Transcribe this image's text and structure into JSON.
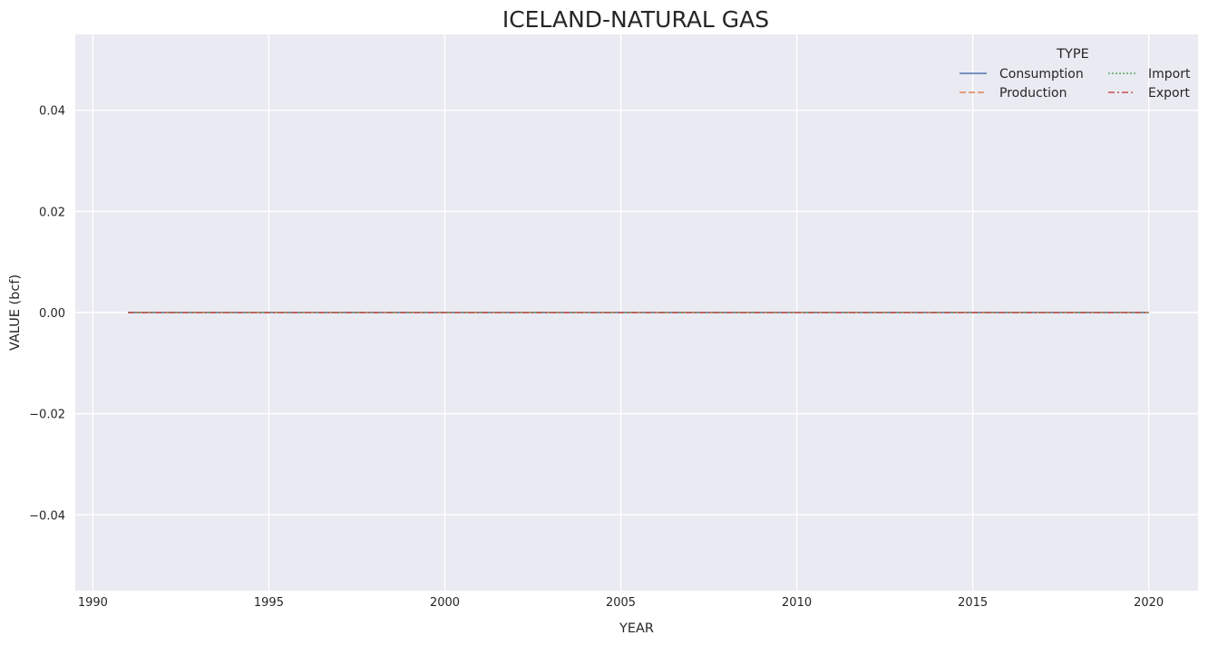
{
  "chart_data": {
    "type": "line",
    "title": "ICELAND-NATURAL GAS",
    "xlabel": "YEAR",
    "ylabel": "VALUE (bcf)",
    "xlim": [
      1989.5,
      2021.4
    ],
    "ylim": [
      -0.055,
      0.055
    ],
    "xticks": [
      1990,
      1995,
      2000,
      2005,
      2010,
      2015,
      2020
    ],
    "xtick_labels": [
      "1990",
      "1995",
      "2000",
      "2005",
      "2010",
      "2015",
      "2020"
    ],
    "yticks": [
      0.04,
      0.02,
      0.0,
      -0.02,
      -0.04
    ],
    "ytick_labels": [
      "0.04",
      "0.02",
      "0.00",
      "−0.02",
      "−0.04"
    ],
    "grid": true,
    "background": "#eaeaf2",
    "legend": {
      "title": "TYPE",
      "placement": "top-right",
      "columns": 2
    },
    "x": [
      1991,
      1992,
      1993,
      1994,
      1995,
      1996,
      1997,
      1998,
      1999,
      2000,
      2001,
      2002,
      2003,
      2004,
      2005,
      2006,
      2007,
      2008,
      2009,
      2010,
      2011,
      2012,
      2013,
      2014,
      2015,
      2016,
      2017,
      2018,
      2019,
      2020
    ],
    "series": [
      {
        "name": "Consumption",
        "color": "#4c72b0",
        "dash": "solid",
        "values": [
          0,
          0,
          0,
          0,
          0,
          0,
          0,
          0,
          0,
          0,
          0,
          0,
          0,
          0,
          0,
          0,
          0,
          0,
          0,
          0,
          0,
          0,
          0,
          0,
          0,
          0,
          0,
          0,
          0,
          0
        ]
      },
      {
        "name": "Production",
        "color": "#dd8452",
        "dash": "dashed",
        "values": [
          0,
          0,
          0,
          0,
          0,
          0,
          0,
          0,
          0,
          0,
          0,
          0,
          0,
          0,
          0,
          0,
          0,
          0,
          0,
          0,
          0,
          0,
          0,
          0,
          0,
          0,
          0,
          0,
          0,
          0
        ]
      },
      {
        "name": "Import",
        "color": "#55a868",
        "dash": "dotted",
        "values": [
          0,
          0,
          0,
          0,
          0,
          0,
          0,
          0,
          0,
          0,
          0,
          0,
          0,
          0,
          0,
          0,
          0,
          0,
          0,
          0,
          0,
          0,
          0,
          0,
          0,
          0,
          0,
          0,
          0,
          0
        ]
      },
      {
        "name": "Export",
        "color": "#c44e52",
        "dash": "dashdot",
        "values": [
          0,
          0,
          0,
          0,
          0,
          0,
          0,
          0,
          0,
          0,
          0,
          0,
          0,
          0,
          0,
          0,
          0,
          0,
          0,
          0,
          0,
          0,
          0,
          0,
          0,
          0,
          0,
          0,
          0,
          0
        ]
      }
    ]
  }
}
